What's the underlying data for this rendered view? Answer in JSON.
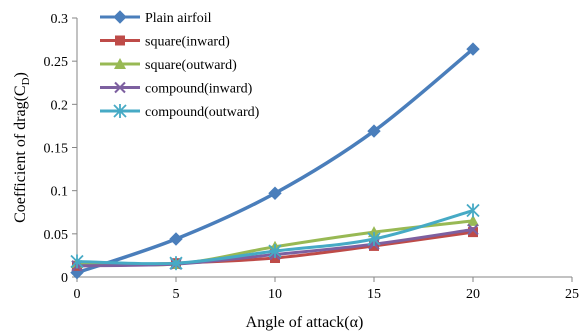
{
  "chart_data": {
    "type": "line",
    "title": "",
    "xlabel": "Angle of attack(α)",
    "ylabel": "Coefficient of drag(C",
    "ylabel_sub": "D",
    "ylabel_close": ")",
    "xlim": [
      0,
      25
    ],
    "ylim": [
      0,
      0.3
    ],
    "xticks": [
      0,
      5,
      10,
      15,
      20,
      25
    ],
    "yticks": [
      0,
      0.05,
      0.1,
      0.15,
      0.2,
      0.25,
      0.3
    ],
    "x": [
      0,
      5,
      10,
      15,
      20
    ],
    "grid": false,
    "legend_position": "top-left",
    "series": [
      {
        "name": "Plain airfoil",
        "color": "#4a7ebb",
        "marker": "diamond",
        "values": [
          0.005,
          0.044,
          0.097,
          0.169,
          0.264
        ]
      },
      {
        "name": "square(inward)",
        "color": "#be4b48",
        "marker": "square",
        "values": [
          0.013,
          0.016,
          0.022,
          0.036,
          0.052
        ]
      },
      {
        "name": "square(outward)",
        "color": "#98b954",
        "marker": "triangle",
        "values": [
          0.016,
          0.015,
          0.035,
          0.052,
          0.065
        ]
      },
      {
        "name": "compound(inward)",
        "color": "#7d60a0",
        "marker": "x",
        "values": [
          0.013,
          0.015,
          0.026,
          0.038,
          0.055
        ]
      },
      {
        "name": "compound(outward)",
        "color": "#46aac5",
        "marker": "star",
        "values": [
          0.018,
          0.016,
          0.03,
          0.044,
          0.077
        ]
      }
    ]
  }
}
